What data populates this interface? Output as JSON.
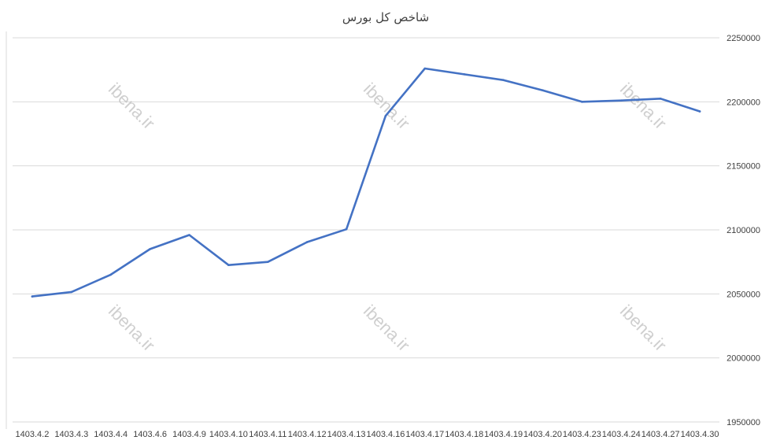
{
  "chart_data": {
    "type": "line",
    "title": "شاخص کل بورس",
    "xlabel": "",
    "ylabel": "",
    "ylim": [
      1950000,
      2250000
    ],
    "yticks": [
      1950000,
      2000000,
      2050000,
      2100000,
      2150000,
      2200000,
      2250000
    ],
    "grid": true,
    "y_axis_side": "right",
    "legend": "none",
    "categories": [
      "1403.4.2",
      "1403.4.3",
      "1403.4.4",
      "1403.4.6",
      "1403.4.9",
      "1403.4.10",
      "1403.4.11",
      "1403.4.12",
      "1403.4.13",
      "1403.4.16",
      "1403.4.17",
      "1403.4.18",
      "1403.4.19",
      "1403.4.20",
      "1403.4.23",
      "1403.4.24",
      "1403.4.27",
      "1403.4.30"
    ],
    "series": [
      {
        "color": "#4472c4",
        "values": [
          2048000,
          2051500,
          2065000,
          2085000,
          2096000,
          2072500,
          2075000,
          2090500,
          2100500,
          2189000,
          2226000,
          2221500,
          2217000,
          2209000,
          2200000,
          2201000,
          2202500,
          2192500
        ]
      }
    ],
    "watermarks": [
      "ibena.ir",
      "ibena.ir",
      "ibena.ir",
      "ibena.ir",
      "ibena.ir",
      "ibena.ir"
    ]
  }
}
